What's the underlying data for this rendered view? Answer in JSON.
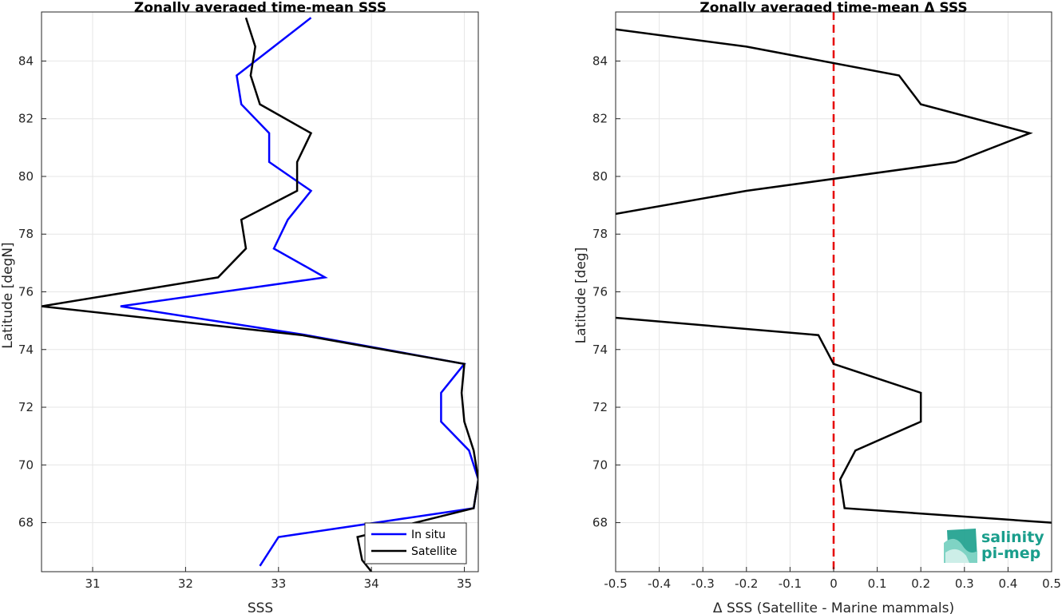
{
  "chart_data": [
    {
      "type": "line",
      "title": "Zonally averaged time-mean SSS",
      "xlabel": "SSS",
      "ylabel": "Latitude [degN]",
      "xlim": [
        30.45,
        35.15
      ],
      "ylim": [
        66.3,
        85.7
      ],
      "xticks": [
        31,
        32,
        33,
        34,
        35
      ],
      "yticks": [
        68,
        70,
        72,
        74,
        76,
        78,
        80,
        82,
        84
      ],
      "grid": true,
      "legend": "bottom-right",
      "series": [
        {
          "name": "In situ",
          "color": "#0000ff",
          "points": [
            [
              33.35,
              85.5
            ],
            [
              32.95,
              84.5
            ],
            [
              32.55,
              83.5
            ],
            [
              32.6,
              82.5
            ],
            [
              32.9,
              81.5
            ],
            [
              32.9,
              80.5
            ],
            [
              33.35,
              79.5
            ],
            [
              33.1,
              78.5
            ],
            [
              32.95,
              77.5
            ],
            [
              33.5,
              76.5
            ],
            [
              31.3,
              75.5
            ],
            [
              33.3,
              74.5
            ],
            [
              35.0,
              73.5
            ],
            [
              34.75,
              72.5
            ],
            [
              34.75,
              71.5
            ],
            [
              35.05,
              70.5
            ],
            [
              35.15,
              69.5
            ],
            [
              35.1,
              68.5
            ],
            [
              33.0,
              67.5
            ],
            [
              32.8,
              66.5
            ]
          ]
        },
        {
          "name": "Satellite",
          "color": "#000000",
          "points": [
            [
              32.65,
              85.5
            ],
            [
              32.75,
              84.5
            ],
            [
              32.7,
              83.5
            ],
            [
              32.8,
              82.5
            ],
            [
              33.35,
              81.5
            ],
            [
              33.2,
              80.5
            ],
            [
              33.2,
              79.5
            ],
            [
              32.6,
              78.5
            ],
            [
              32.65,
              77.5
            ],
            [
              32.35,
              76.5
            ],
            [
              30.45,
              75.5
            ],
            [
              33.25,
              74.5
            ],
            [
              35.0,
              73.5
            ],
            [
              34.97,
              72.5
            ],
            [
              35.0,
              71.5
            ],
            [
              35.1,
              70.5
            ],
            [
              35.15,
              69.5
            ],
            [
              35.1,
              68.5
            ],
            [
              33.85,
              67.5
            ],
            [
              33.9,
              66.7
            ],
            [
              34.0,
              66.3
            ]
          ]
        }
      ]
    },
    {
      "type": "line",
      "title": "Zonally averaged time-mean Δ SSS",
      "xlabel": "Δ SSS (Satellite - Marine mammals)",
      "ylabel": "Latitude [deg]",
      "xlim": [
        -0.5,
        0.5
      ],
      "ylim": [
        66.3,
        85.7
      ],
      "xticks": [
        -0.5,
        -0.4,
        -0.3,
        -0.2,
        -0.1,
        0,
        0.1,
        0.2,
        0.3,
        0.4,
        0.5
      ],
      "xtick_labels": [
        "-0.5",
        "-0.4",
        "-0.3",
        "-0.2",
        "-0.1",
        "0",
        "0.1",
        "0.2",
        "0.3",
        "0.4",
        "0.5"
      ],
      "yticks": [
        68,
        70,
        72,
        74,
        76,
        78,
        80,
        82,
        84
      ],
      "grid": true,
      "zero_line": {
        "x": 0,
        "color": "#e60000",
        "style": "dashed"
      },
      "series": [
        {
          "segments": [
            [
              [
                -0.5,
                85.1
              ],
              [
                -0.2,
                84.5
              ],
              [
                0.15,
                83.5
              ],
              [
                0.2,
                82.5
              ],
              [
                0.45,
                81.5
              ],
              [
                0.28,
                80.5
              ],
              [
                -0.2,
                79.5
              ],
              [
                -0.5,
                78.7
              ]
            ],
            [
              [
                -0.5,
                75.1
              ],
              [
                -0.035,
                74.5
              ],
              [
                0.0,
                73.5
              ],
              [
                0.2,
                72.5
              ],
              [
                0.2,
                71.5
              ],
              [
                0.05,
                70.5
              ],
              [
                0.015,
                69.5
              ],
              [
                0.025,
                68.5
              ],
              [
                0.5,
                68.0
              ]
            ]
          ],
          "color": "#000000"
        }
      ]
    }
  ],
  "logo": {
    "line1": "salinity",
    "line2": "pi-mep",
    "color": "#1a9e8c"
  }
}
